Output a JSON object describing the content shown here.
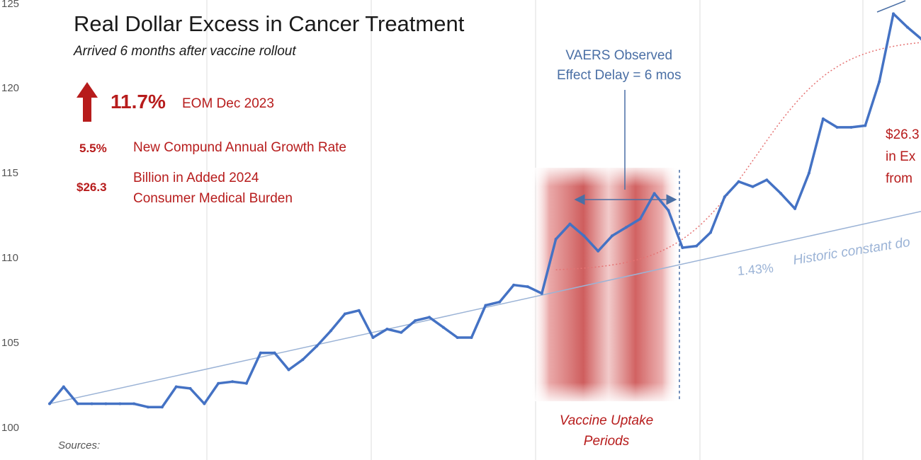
{
  "chart_data": {
    "type": "line",
    "title": "Real Dollar Excess in Cancer Treatment",
    "subtitle": "Arrived 6 months after vaccine rollout",
    "xlabel": "",
    "ylabel": "",
    "ylim": [
      100,
      125
    ],
    "y_ticks": [
      "100",
      "105",
      "110",
      "115",
      "120",
      "125"
    ],
    "grid": "vertical",
    "series": [
      {
        "values": [
          101.4,
          102.4,
          101.4,
          101.4,
          101.4,
          101.4,
          101.4,
          101.2,
          101.2,
          102.4,
          102.3,
          101.4,
          102.6,
          102.7,
          102.6,
          104.4,
          104.4,
          103.4,
          104.0,
          104.8,
          105.7,
          106.7,
          106.9,
          105.3,
          105.8,
          105.6,
          106.3,
          106.5,
          105.9,
          105.3,
          105.3,
          107.2,
          107.4,
          108.4,
          108.3,
          107.9,
          111.1,
          112.0,
          111.3,
          110.4,
          111.3,
          111.8,
          112.3,
          113.8,
          112.8,
          110.6,
          110.7,
          111.5,
          113.6,
          114.5,
          114.2,
          114.6,
          113.8,
          112.9,
          115.0,
          118.2,
          117.7,
          117.7,
          117.8,
          120.4,
          124.4,
          123.6,
          122.9,
          123.1,
          123.0
        ],
        "color": "#4472c4"
      }
    ],
    "trend_line": {
      "label": "Historic constant do",
      "rate": "1.43%",
      "start_value": 101.4,
      "slope_per_period": 0.183,
      "color": "#9bb3d6"
    },
    "excess_curve": {
      "color": "#e57373",
      "start_index": 36,
      "start_value": 109.3,
      "end_value": 122.7
    },
    "shaded_region": {
      "start_index": 36,
      "end_index": 46,
      "label": "Vaccine Uptake Periods"
    },
    "annotations": {
      "headline_pct": "11.7%",
      "headline_date": "EOM Dec 2023",
      "cagr_value": "5.5%",
      "cagr_label": "New Compund Annual Growth Rate",
      "burden_value": "$26.3",
      "burden_label_line1": "Billion in Added 2024",
      "burden_label_line2": "Consumer Medical Burden",
      "vaers_line1": "VAERS Observed",
      "vaers_line2": "Effect Delay = 6 mos",
      "uptake_line1": "Vaccine Uptake",
      "uptake_line2": "Periods",
      "right_line1": "$26.3",
      "right_line2": "in Ex",
      "right_line3": "from",
      "sources_label": "Sources:"
    },
    "colors": {
      "accent_red": "#b71c1c",
      "series_blue": "#4472c4",
      "annotation_blue": "#4a6fa5"
    }
  }
}
